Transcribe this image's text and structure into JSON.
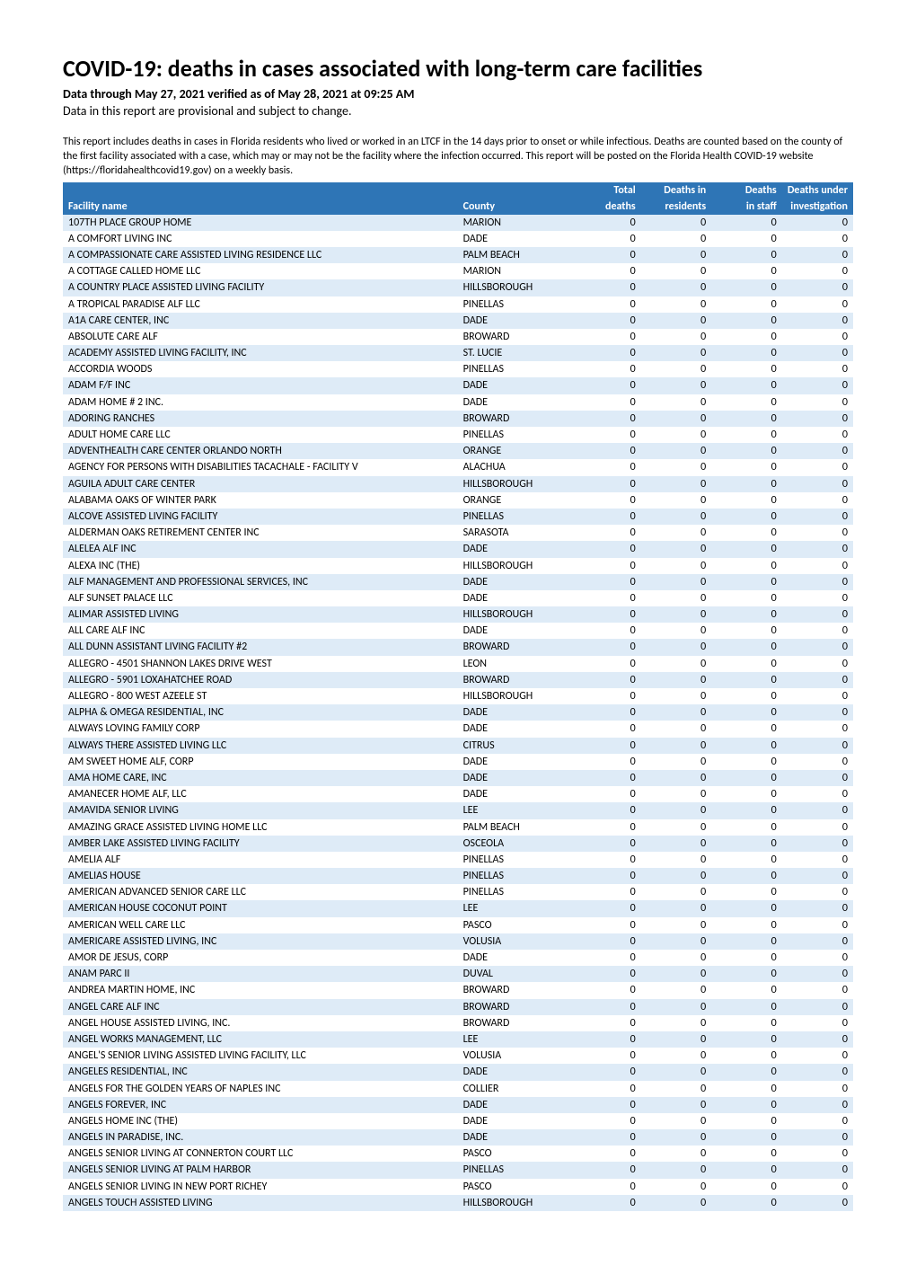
{
  "title": "COVID-19: deaths in cases associated with long-term care facilities",
  "subtitle": "Data through May 27, 2021 verified as of May 28, 2021 at 09:25 AM",
  "provisional": "Data in this report are provisional and subject to change.",
  "description": "This report includes deaths in cases in Florida residents who lived or worked in an LTCF in the 14 days prior to onset or while infectious. Deaths are counted based on the county of the first facility associated with a case, which may or may not be the facility where the infection occurred. This report will be posted on the Florida Health COVID-19 website (https://floridahealthcovid19.gov) on a weekly basis.",
  "colors": {
    "header_bg": "#2e75b6",
    "header_fg": "#ffffff",
    "row_alt_bg": "#deebf7",
    "row_bg": "#ffffff",
    "text": "#000000"
  },
  "table": {
    "columns": [
      {
        "key": "facility",
        "label_top": "",
        "label": "Facility name",
        "align": "left"
      },
      {
        "key": "county",
        "label_top": "",
        "label": "County",
        "align": "left"
      },
      {
        "key": "total",
        "label_top": "Total",
        "label": "deaths",
        "align": "right"
      },
      {
        "key": "residents",
        "label_top": "Deaths in",
        "label": "residents",
        "align": "right"
      },
      {
        "key": "staff",
        "label_top": "Deaths",
        "label": "in staff",
        "align": "right"
      },
      {
        "key": "invest",
        "label_top": "Deaths under",
        "label": "investigation",
        "align": "right"
      }
    ],
    "rows": [
      {
        "facility": "107TH PLACE GROUP HOME",
        "county": "MARION",
        "total": 0,
        "residents": 0,
        "staff": 0,
        "invest": 0
      },
      {
        "facility": "A COMFORT LIVING INC",
        "county": "DADE",
        "total": 0,
        "residents": 0,
        "staff": 0,
        "invest": 0
      },
      {
        "facility": "A COMPASSIONATE CARE ASSISTED LIVING RESIDENCE LLC",
        "county": "PALM BEACH",
        "total": 0,
        "residents": 0,
        "staff": 0,
        "invest": 0
      },
      {
        "facility": "A COTTAGE CALLED HOME LLC",
        "county": "MARION",
        "total": 0,
        "residents": 0,
        "staff": 0,
        "invest": 0
      },
      {
        "facility": "A COUNTRY PLACE ASSISTED LIVING FACILITY",
        "county": "HILLSBOROUGH",
        "total": 0,
        "residents": 0,
        "staff": 0,
        "invest": 0
      },
      {
        "facility": "A TROPICAL PARADISE ALF LLC",
        "county": "PINELLAS",
        "total": 0,
        "residents": 0,
        "staff": 0,
        "invest": 0
      },
      {
        "facility": "A1A CARE CENTER, INC",
        "county": "DADE",
        "total": 0,
        "residents": 0,
        "staff": 0,
        "invest": 0
      },
      {
        "facility": "ABSOLUTE CARE ALF",
        "county": "BROWARD",
        "total": 0,
        "residents": 0,
        "staff": 0,
        "invest": 0
      },
      {
        "facility": "ACADEMY ASSISTED LIVING FACILITY, INC",
        "county": "ST. LUCIE",
        "total": 0,
        "residents": 0,
        "staff": 0,
        "invest": 0
      },
      {
        "facility": "ACCORDIA WOODS",
        "county": "PINELLAS",
        "total": 0,
        "residents": 0,
        "staff": 0,
        "invest": 0
      },
      {
        "facility": "ADAM F/F INC",
        "county": "DADE",
        "total": 0,
        "residents": 0,
        "staff": 0,
        "invest": 0
      },
      {
        "facility": "ADAM HOME # 2 INC.",
        "county": "DADE",
        "total": 0,
        "residents": 0,
        "staff": 0,
        "invest": 0
      },
      {
        "facility": "ADORING RANCHES",
        "county": "BROWARD",
        "total": 0,
        "residents": 0,
        "staff": 0,
        "invest": 0
      },
      {
        "facility": "ADULT HOME CARE LLC",
        "county": "PINELLAS",
        "total": 0,
        "residents": 0,
        "staff": 0,
        "invest": 0
      },
      {
        "facility": "ADVENTHEALTH CARE CENTER ORLANDO NORTH",
        "county": "ORANGE",
        "total": 0,
        "residents": 0,
        "staff": 0,
        "invest": 0
      },
      {
        "facility": "AGENCY FOR PERSONS WITH DISABILITIES TACACHALE - FACILITY V",
        "county": "ALACHUA",
        "total": 0,
        "residents": 0,
        "staff": 0,
        "invest": 0
      },
      {
        "facility": "AGUILA ADULT CARE CENTER",
        "county": "HILLSBOROUGH",
        "total": 0,
        "residents": 0,
        "staff": 0,
        "invest": 0
      },
      {
        "facility": "ALABAMA OAKS OF WINTER PARK",
        "county": "ORANGE",
        "total": 0,
        "residents": 0,
        "staff": 0,
        "invest": 0
      },
      {
        "facility": "ALCOVE ASSISTED LIVING FACILITY",
        "county": "PINELLAS",
        "total": 0,
        "residents": 0,
        "staff": 0,
        "invest": 0
      },
      {
        "facility": "ALDERMAN OAKS RETIREMENT CENTER INC",
        "county": "SARASOTA",
        "total": 0,
        "residents": 0,
        "staff": 0,
        "invest": 0
      },
      {
        "facility": "ALELEA ALF INC",
        "county": "DADE",
        "total": 0,
        "residents": 0,
        "staff": 0,
        "invest": 0
      },
      {
        "facility": "ALEXA INC (THE)",
        "county": "HILLSBOROUGH",
        "total": 0,
        "residents": 0,
        "staff": 0,
        "invest": 0
      },
      {
        "facility": "ALF MANAGEMENT AND PROFESSIONAL SERVICES, INC",
        "county": "DADE",
        "total": 0,
        "residents": 0,
        "staff": 0,
        "invest": 0
      },
      {
        "facility": "ALF SUNSET PALACE LLC",
        "county": "DADE",
        "total": 0,
        "residents": 0,
        "staff": 0,
        "invest": 0
      },
      {
        "facility": "ALIMAR ASSISTED LIVING",
        "county": "HILLSBOROUGH",
        "total": 0,
        "residents": 0,
        "staff": 0,
        "invest": 0
      },
      {
        "facility": "ALL CARE ALF INC",
        "county": "DADE",
        "total": 0,
        "residents": 0,
        "staff": 0,
        "invest": 0
      },
      {
        "facility": "ALL DUNN ASSISTANT LIVING FACILITY #2",
        "county": "BROWARD",
        "total": 0,
        "residents": 0,
        "staff": 0,
        "invest": 0
      },
      {
        "facility": "ALLEGRO - 4501 SHANNON LAKES DRIVE WEST",
        "county": "LEON",
        "total": 0,
        "residents": 0,
        "staff": 0,
        "invest": 0
      },
      {
        "facility": "ALLEGRO - 5901 LOXAHATCHEE ROAD",
        "county": "BROWARD",
        "total": 0,
        "residents": 0,
        "staff": 0,
        "invest": 0
      },
      {
        "facility": "ALLEGRO - 800 WEST AZEELE ST",
        "county": "HILLSBOROUGH",
        "total": 0,
        "residents": 0,
        "staff": 0,
        "invest": 0
      },
      {
        "facility": "ALPHA & OMEGA RESIDENTIAL, INC",
        "county": "DADE",
        "total": 0,
        "residents": 0,
        "staff": 0,
        "invest": 0
      },
      {
        "facility": "ALWAYS LOVING FAMILY CORP",
        "county": "DADE",
        "total": 0,
        "residents": 0,
        "staff": 0,
        "invest": 0
      },
      {
        "facility": "ALWAYS THERE ASSISTED LIVING LLC",
        "county": "CITRUS",
        "total": 0,
        "residents": 0,
        "staff": 0,
        "invest": 0
      },
      {
        "facility": "AM SWEET HOME ALF, CORP",
        "county": "DADE",
        "total": 0,
        "residents": 0,
        "staff": 0,
        "invest": 0
      },
      {
        "facility": "AMA HOME CARE, INC",
        "county": "DADE",
        "total": 0,
        "residents": 0,
        "staff": 0,
        "invest": 0
      },
      {
        "facility": "AMANECER HOME ALF, LLC",
        "county": "DADE",
        "total": 0,
        "residents": 0,
        "staff": 0,
        "invest": 0
      },
      {
        "facility": "AMAVIDA SENIOR LIVING",
        "county": "LEE",
        "total": 0,
        "residents": 0,
        "staff": 0,
        "invest": 0
      },
      {
        "facility": "AMAZING GRACE ASSISTED LIVING HOME LLC",
        "county": "PALM BEACH",
        "total": 0,
        "residents": 0,
        "staff": 0,
        "invest": 0
      },
      {
        "facility": "AMBER LAKE ASSISTED LIVING FACILITY",
        "county": "OSCEOLA",
        "total": 0,
        "residents": 0,
        "staff": 0,
        "invest": 0
      },
      {
        "facility": "AMELIA ALF",
        "county": "PINELLAS",
        "total": 0,
        "residents": 0,
        "staff": 0,
        "invest": 0
      },
      {
        "facility": "AMELIAS HOUSE",
        "county": "PINELLAS",
        "total": 0,
        "residents": 0,
        "staff": 0,
        "invest": 0
      },
      {
        "facility": "AMERICAN ADVANCED SENIOR CARE LLC",
        "county": "PINELLAS",
        "total": 0,
        "residents": 0,
        "staff": 0,
        "invest": 0
      },
      {
        "facility": "AMERICAN HOUSE COCONUT POINT",
        "county": "LEE",
        "total": 0,
        "residents": 0,
        "staff": 0,
        "invest": 0
      },
      {
        "facility": "AMERICAN WELL CARE LLC",
        "county": "PASCO",
        "total": 0,
        "residents": 0,
        "staff": 0,
        "invest": 0
      },
      {
        "facility": "AMERICARE ASSISTED LIVING, INC",
        "county": "VOLUSIA",
        "total": 0,
        "residents": 0,
        "staff": 0,
        "invest": 0
      },
      {
        "facility": "AMOR DE JESUS, CORP",
        "county": "DADE",
        "total": 0,
        "residents": 0,
        "staff": 0,
        "invest": 0
      },
      {
        "facility": "ANAM PARC II",
        "county": "DUVAL",
        "total": 0,
        "residents": 0,
        "staff": 0,
        "invest": 0
      },
      {
        "facility": "ANDREA MARTIN HOME, INC",
        "county": "BROWARD",
        "total": 0,
        "residents": 0,
        "staff": 0,
        "invest": 0
      },
      {
        "facility": "ANGEL CARE ALF INC",
        "county": "BROWARD",
        "total": 0,
        "residents": 0,
        "staff": 0,
        "invest": 0
      },
      {
        "facility": "ANGEL HOUSE ASSISTED LIVING, INC.",
        "county": "BROWARD",
        "total": 0,
        "residents": 0,
        "staff": 0,
        "invest": 0
      },
      {
        "facility": "ANGEL WORKS MANAGEMENT, LLC",
        "county": "LEE",
        "total": 0,
        "residents": 0,
        "staff": 0,
        "invest": 0
      },
      {
        "facility": "ANGEL'S SENIOR LIVING ASSISTED LIVING FACILITY, LLC",
        "county": "VOLUSIA",
        "total": 0,
        "residents": 0,
        "staff": 0,
        "invest": 0
      },
      {
        "facility": "ANGELES RESIDENTIAL, INC",
        "county": "DADE",
        "total": 0,
        "residents": 0,
        "staff": 0,
        "invest": 0
      },
      {
        "facility": "ANGELS FOR THE GOLDEN YEARS OF NAPLES INC",
        "county": "COLLIER",
        "total": 0,
        "residents": 0,
        "staff": 0,
        "invest": 0
      },
      {
        "facility": "ANGELS FOREVER, INC",
        "county": "DADE",
        "total": 0,
        "residents": 0,
        "staff": 0,
        "invest": 0
      },
      {
        "facility": "ANGELS HOME INC (THE)",
        "county": "DADE",
        "total": 0,
        "residents": 0,
        "staff": 0,
        "invest": 0
      },
      {
        "facility": "ANGELS IN PARADISE, INC.",
        "county": "DADE",
        "total": 0,
        "residents": 0,
        "staff": 0,
        "invest": 0
      },
      {
        "facility": "ANGELS SENIOR LIVING AT CONNERTON COURT LLC",
        "county": "PASCO",
        "total": 0,
        "residents": 0,
        "staff": 0,
        "invest": 0
      },
      {
        "facility": "ANGELS SENIOR LIVING AT PALM HARBOR",
        "county": "PINELLAS",
        "total": 0,
        "residents": 0,
        "staff": 0,
        "invest": 0
      },
      {
        "facility": "ANGELS SENIOR LIVING IN NEW PORT RICHEY",
        "county": "PASCO",
        "total": 0,
        "residents": 0,
        "staff": 0,
        "invest": 0
      },
      {
        "facility": "ANGELS TOUCH ASSISTED LIVING",
        "county": "HILLSBOROUGH",
        "total": 0,
        "residents": 0,
        "staff": 0,
        "invest": 0
      }
    ]
  }
}
